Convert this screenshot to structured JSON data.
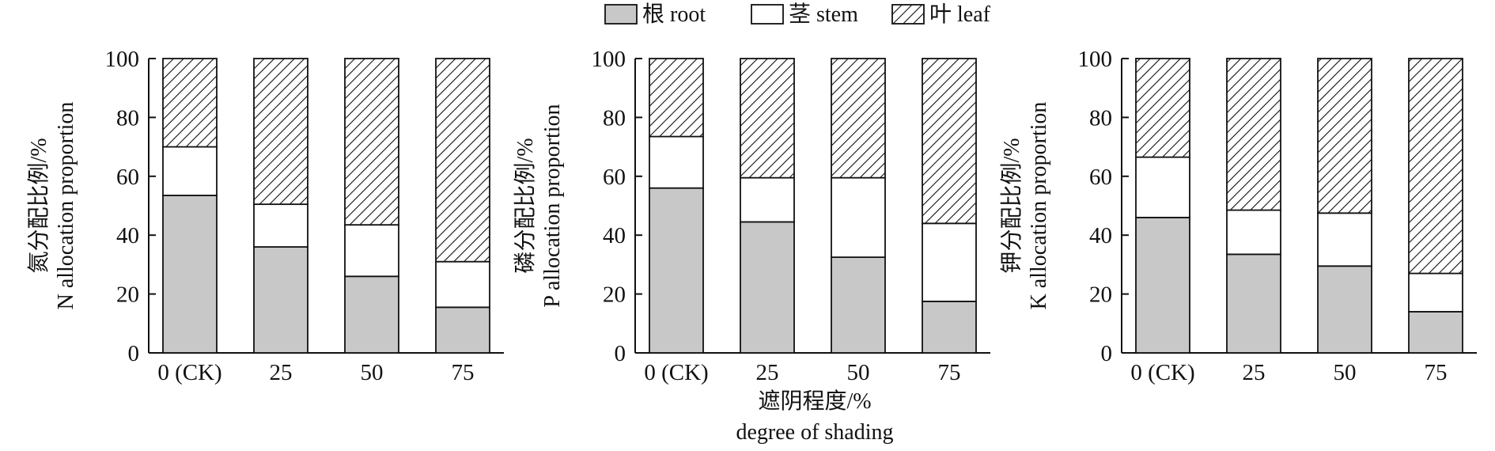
{
  "legend": [
    {
      "key": "root",
      "label": "根 root",
      "fill": "#c8c8c8",
      "pattern": "solid"
    },
    {
      "key": "stem",
      "label": "茎 stem",
      "fill": "#ffffff",
      "pattern": "solid"
    },
    {
      "key": "leaf",
      "label": "叶 leaf",
      "fill": "#ffffff",
      "pattern": "diagonal-hatch"
    }
  ],
  "xlabel_cn": "遮阴程度/%",
  "xlabel_en": "degree of shading",
  "chart_data": [
    {
      "type": "bar",
      "stacked": true,
      "categories": [
        "0 (CK)",
        "25",
        "50",
        "75"
      ],
      "ylabel_cn": "氮分配比例/%",
      "ylabel_en": "N allocation proportion",
      "ylim": [
        0,
        100
      ],
      "yticks": [
        0,
        20,
        40,
        60,
        80,
        100
      ],
      "series": [
        {
          "name": "根 root",
          "values": [
            53.5,
            36,
            26,
            15.5
          ]
        },
        {
          "name": "茎 stem",
          "values": [
            16.5,
            14.5,
            17.5,
            15.5
          ]
        },
        {
          "name": "叶 leaf",
          "values": [
            30,
            49.5,
            56.5,
            69
          ]
        }
      ]
    },
    {
      "type": "bar",
      "stacked": true,
      "categories": [
        "0 (CK)",
        "25",
        "50",
        "75"
      ],
      "ylabel_cn": "磷分配比例/%",
      "ylabel_en": "P allocation proportion",
      "ylim": [
        0,
        100
      ],
      "yticks": [
        0,
        20,
        40,
        60,
        80,
        100
      ],
      "series": [
        {
          "name": "根 root",
          "values": [
            56,
            44.5,
            32.5,
            17.5
          ]
        },
        {
          "name": "茎 stem",
          "values": [
            17.5,
            15,
            27,
            26.5
          ]
        },
        {
          "name": "叶 leaf",
          "values": [
            26.5,
            40.5,
            40.5,
            56
          ]
        }
      ]
    },
    {
      "type": "bar",
      "stacked": true,
      "categories": [
        "0 (CK)",
        "25",
        "50",
        "75"
      ],
      "ylabel_cn": "钾分配比例/%",
      "ylabel_en": "K allocation proportion",
      "ylim": [
        0,
        100
      ],
      "yticks": [
        0,
        20,
        40,
        60,
        80,
        100
      ],
      "series": [
        {
          "name": "根 root",
          "values": [
            46,
            33.5,
            29.5,
            14
          ]
        },
        {
          "name": "茎 stem",
          "values": [
            20.5,
            15,
            18,
            13
          ]
        },
        {
          "name": "叶 leaf",
          "values": [
            33.5,
            51.5,
            52.5,
            73
          ]
        }
      ]
    }
  ]
}
